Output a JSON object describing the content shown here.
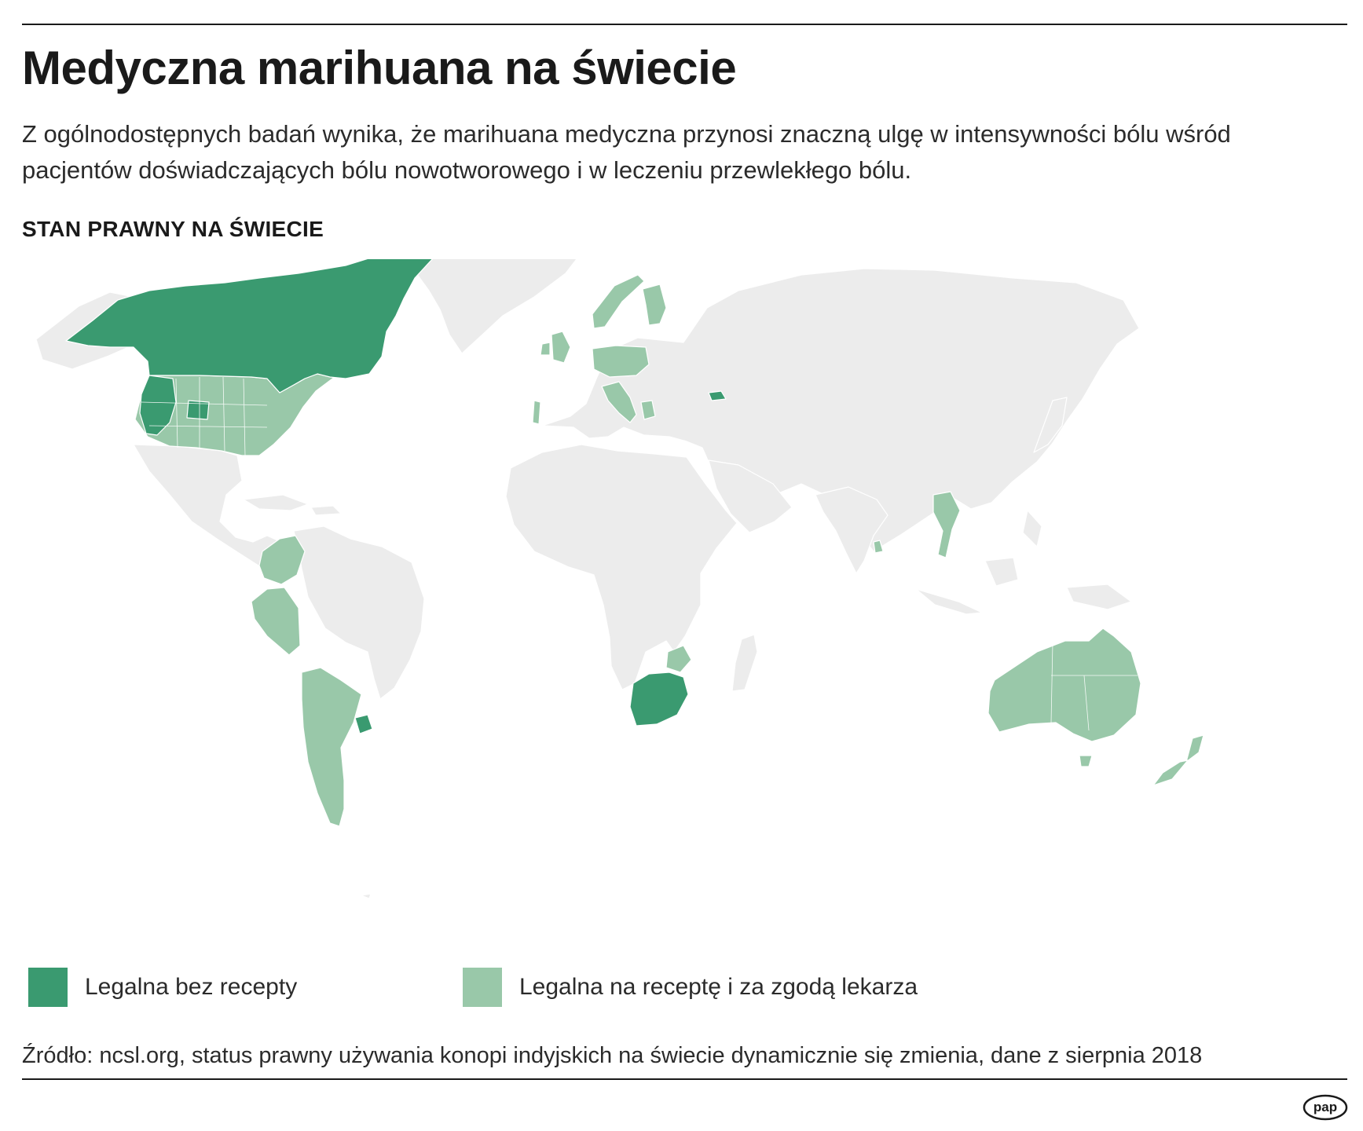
{
  "header": {
    "title": "Medyczna marihuana na świecie",
    "lead": "Z ogólnodostępnych badań wynika, że marihuana medyczna przynosi znaczną ulgę w intensywności bólu wśród pacjentów doświadczających bólu nowotworowego i w leczeniu przewlekłego bólu."
  },
  "map": {
    "heading": "STAN PRAWNY NA ŚWIECIE",
    "categories": [
      {
        "id": "recreational",
        "label": "Legalna bez recepty",
        "color": "#3a9a70"
      },
      {
        "id": "medical",
        "label": "Legalna na receptę i za zgodą lekarza",
        "color": "#99c8a9"
      }
    ],
    "other_color": "#ececec",
    "regions": [
      {
        "name": "Canada",
        "status": "recreational"
      },
      {
        "name": "Uruguay",
        "status": "recreational"
      },
      {
        "name": "South Africa",
        "status": "recreational"
      },
      {
        "name": "Georgia",
        "status": "recreational"
      },
      {
        "name": "USA – Washington",
        "status": "recreational"
      },
      {
        "name": "USA – Oregon",
        "status": "recreational"
      },
      {
        "name": "USA – California",
        "status": "recreational"
      },
      {
        "name": "USA – Nevada",
        "status": "recreational"
      },
      {
        "name": "USA – Colorado",
        "status": "recreational"
      },
      {
        "name": "USA – other states (medical)",
        "status": "medical"
      },
      {
        "name": "Colombia",
        "status": "medical"
      },
      {
        "name": "Peru",
        "status": "medical"
      },
      {
        "name": "Chile",
        "status": "medical"
      },
      {
        "name": "Argentina",
        "status": "medical"
      },
      {
        "name": "Portugal",
        "status": "medical"
      },
      {
        "name": "United Kingdom",
        "status": "medical"
      },
      {
        "name": "Ireland",
        "status": "medical"
      },
      {
        "name": "Norway",
        "status": "medical"
      },
      {
        "name": "Finland",
        "status": "medical"
      },
      {
        "name": "Germany",
        "status": "medical"
      },
      {
        "name": "Poland",
        "status": "medical"
      },
      {
        "name": "Czech Republic",
        "status": "medical"
      },
      {
        "name": "Italy",
        "status": "medical"
      },
      {
        "name": "Croatia",
        "status": "medical"
      },
      {
        "name": "North Macedonia",
        "status": "medical"
      },
      {
        "name": "Greece",
        "status": "medical"
      },
      {
        "name": "Zimbabwe",
        "status": "medical"
      },
      {
        "name": "Thailand",
        "status": "medical"
      },
      {
        "name": "Sri Lanka",
        "status": "medical"
      },
      {
        "name": "Australia",
        "status": "medical"
      },
      {
        "name": "New Zealand",
        "status": "medical"
      }
    ]
  },
  "footer": {
    "source": "Źródło: ncsl.org, status prawny używania konopi indyjskich na świecie dynamicznie się zmienia, dane z sierpnia 2018",
    "logo_text": "pap"
  }
}
